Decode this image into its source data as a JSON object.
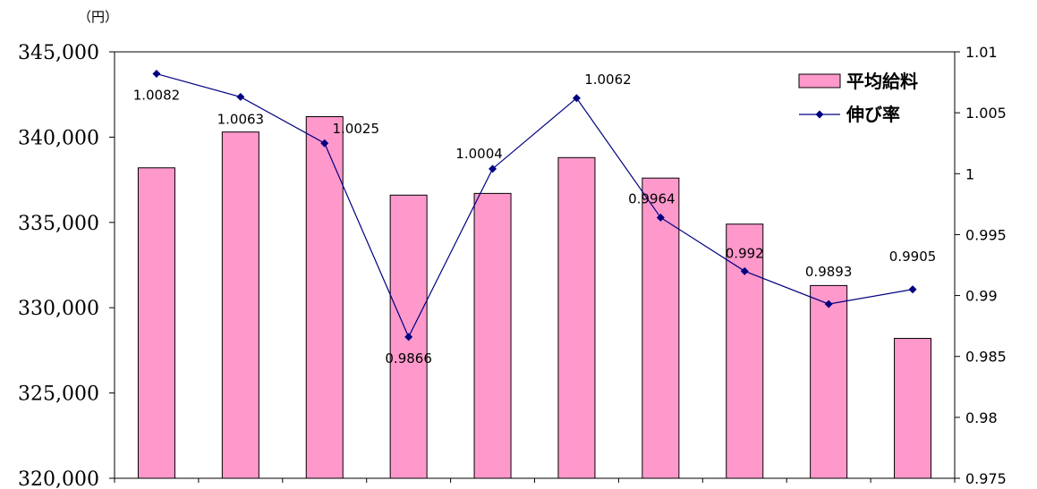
{
  "chart_data": {
    "type": "bar",
    "unit_label": "（円）",
    "categories": [
      "",
      "",
      "",
      "",
      "",
      "",
      "",
      "",
      "",
      ""
    ],
    "series": [
      {
        "name": "平均給料",
        "type": "bar",
        "axis": "left",
        "values": [
          338200,
          340300,
          341200,
          336600,
          336700,
          338800,
          337600,
          334900,
          331300,
          328200
        ]
      },
      {
        "name": "伸び率",
        "type": "line",
        "axis": "right",
        "values": [
          1.0082,
          1.0063,
          1.0025,
          0.9866,
          1.0004,
          1.0062,
          0.9964,
          0.992,
          0.9893,
          0.9905
        ]
      }
    ],
    "data_labels": [
      "1.0082",
      "1.0063",
      "1.0025",
      "0.9866",
      "1.0004",
      "1.0062",
      "0.9964",
      "0.992",
      "0.9893",
      "0.9905"
    ],
    "left_axis": {
      "ylim": [
        320000,
        345000
      ],
      "ticks": [
        320000,
        325000,
        330000,
        335000,
        340000,
        345000
      ],
      "tick_labels": [
        "320,000",
        "325,000",
        "330,000",
        "335,000",
        "340,000",
        "345,000"
      ]
    },
    "right_axis": {
      "ylim": [
        0.975,
        1.01
      ],
      "ticks": [
        0.975,
        0.98,
        0.985,
        0.99,
        0.995,
        1.0,
        1.005,
        1.01
      ],
      "tick_labels": [
        "0.975",
        "0.98",
        "0.985",
        "0.99",
        "0.995",
        "1",
        "1.005",
        "1.01"
      ]
    },
    "grid": false,
    "legend": "top-right",
    "colors": {
      "bar_fill": "#ff99cc",
      "bar_stroke": "#000000",
      "line": "#000080",
      "marker": "#000080",
      "axis": "#000000"
    }
  }
}
